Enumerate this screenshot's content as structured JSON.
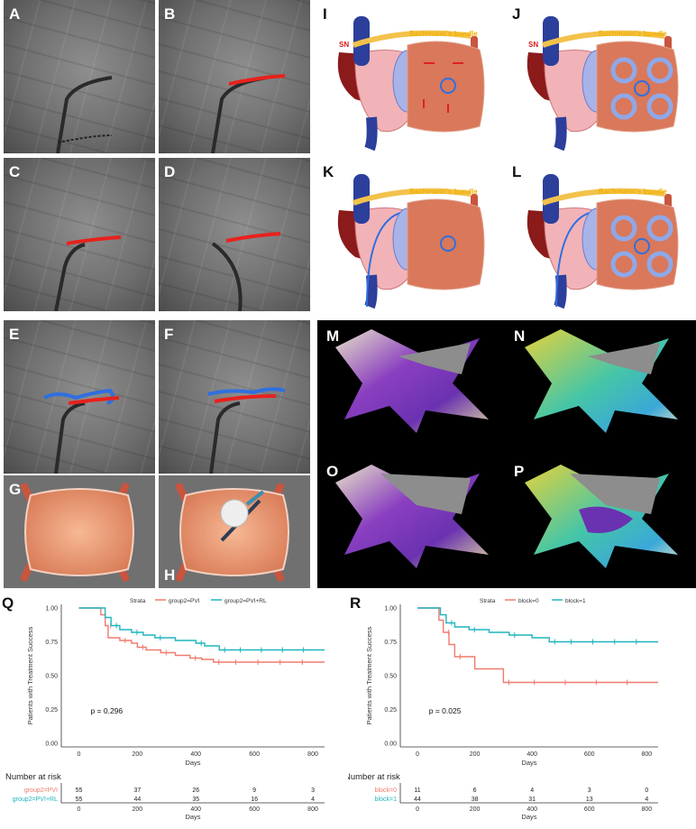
{
  "figure": {
    "panel_labels": [
      "A",
      "B",
      "C",
      "D",
      "E",
      "F",
      "G",
      "H",
      "I",
      "J",
      "K",
      "L",
      "M",
      "N",
      "O",
      "P",
      "Q",
      "R"
    ],
    "diagram_labels": {
      "sn": "SN",
      "bundle": "Bachmann's bundle"
    }
  },
  "colors": {
    "red": "#f07b6e",
    "teal": "#1fb5bd",
    "axis": "#333333"
  },
  "chart_data": [
    {
      "type": "line",
      "panel": "Q",
      "legend_title": "Strata",
      "legend": [
        "group2=PVI",
        "group2=PVI+RL"
      ],
      "ylabel": "Patients with Treatment Success",
      "xlabel": "Days",
      "xlim": [
        -60,
        840
      ],
      "ylim": [
        0,
        1
      ],
      "xticks": [
        "0",
        "200",
        "400",
        "600",
        "800"
      ],
      "yticks": [
        "0.00",
        "0.25",
        "0.50",
        "0.75",
        "1.00"
      ],
      "pvalue": "p = 0.296",
      "series": [
        {
          "name": "group2=PVI",
          "color": "#f07b6e",
          "x": [
            0,
            75,
            90,
            100,
            140,
            180,
            200,
            230,
            280,
            330,
            380,
            420,
            460,
            840
          ],
          "y": [
            1.0,
            0.95,
            0.87,
            0.78,
            0.76,
            0.74,
            0.71,
            0.69,
            0.67,
            0.65,
            0.63,
            0.62,
            0.6,
            0.6
          ]
        },
        {
          "name": "group2=PVI+RL",
          "color": "#1fb5bd",
          "x": [
            0,
            90,
            110,
            140,
            180,
            220,
            260,
            330,
            400,
            430,
            480,
            840
          ],
          "y": [
            1.0,
            0.93,
            0.87,
            0.84,
            0.82,
            0.8,
            0.78,
            0.76,
            0.74,
            0.72,
            0.69,
            0.69
          ]
        }
      ],
      "risk_table": {
        "title": "Number at risk",
        "strata_label": "Strata",
        "rows": [
          {
            "label": "group2=PVI",
            "color": "#f07b6e",
            "values": [
              "55",
              "37",
              "26",
              "9",
              "3"
            ]
          },
          {
            "label": "group2=PVI+RL",
            "color": "#1fb5bd",
            "values": [
              "55",
              "44",
              "35",
              "16",
              "4"
            ]
          }
        ],
        "xlabel": "Days"
      }
    },
    {
      "type": "line",
      "panel": "R",
      "legend_title": "Strata",
      "legend": [
        "block=0",
        "block=1"
      ],
      "ylabel": "Patients with Treatment Success",
      "xlabel": "Days",
      "xlim": [
        -60,
        840
      ],
      "ylim": [
        0,
        1
      ],
      "xticks": [
        "0",
        "200",
        "400",
        "600",
        "800"
      ],
      "yticks": [
        "0.00",
        "0.25",
        "0.50",
        "0.75",
        "1.00"
      ],
      "pvalue": "p = 0.025",
      "series": [
        {
          "name": "block=0",
          "color": "#f07b6e",
          "x": [
            0,
            75,
            90,
            110,
            130,
            200,
            300,
            840
          ],
          "y": [
            1.0,
            0.91,
            0.82,
            0.73,
            0.64,
            0.55,
            0.45,
            0.45
          ]
        },
        {
          "name": "block=1",
          "color": "#1fb5bd",
          "x": [
            0,
            80,
            100,
            130,
            180,
            250,
            320,
            400,
            460,
            840
          ],
          "y": [
            1.0,
            0.95,
            0.89,
            0.86,
            0.84,
            0.82,
            0.8,
            0.78,
            0.75,
            0.75
          ]
        }
      ],
      "risk_table": {
        "title": "Number at risk",
        "strata_label": "Strata",
        "rows": [
          {
            "label": "block=0",
            "color": "#f07b6e",
            "values": [
              "11",
              "6",
              "4",
              "3",
              "0"
            ]
          },
          {
            "label": "block=1",
            "color": "#1fb5bd",
            "values": [
              "44",
              "38",
              "31",
              "13",
              "4"
            ]
          }
        ],
        "xlabel": "Days"
      }
    }
  ]
}
